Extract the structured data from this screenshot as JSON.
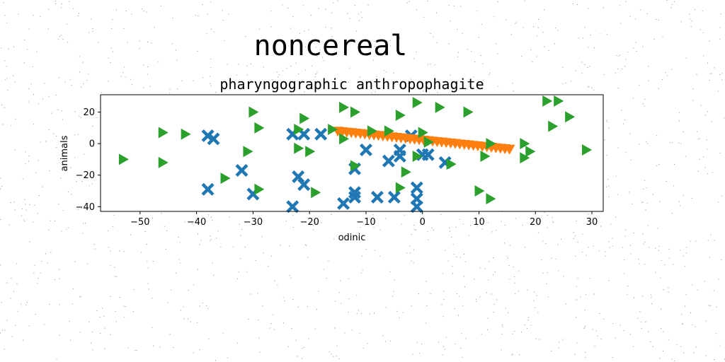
{
  "figure": {
    "suptitle": "noncereal"
  },
  "chart_data": {
    "type": "scatter",
    "title": "pharyngographic anthropophagite",
    "xlabel": "odinic",
    "ylabel": "animals",
    "xlim": [
      -57,
      32
    ],
    "ylim": [
      -43,
      31
    ],
    "xticks": [
      -50,
      -40,
      -30,
      -20,
      -10,
      0,
      10,
      20,
      30
    ],
    "yticks": [
      -40,
      -20,
      0,
      20
    ],
    "grid": false,
    "legend": "none",
    "series": [
      {
        "marker": "X",
        "color": "#1f77b4",
        "points": [
          [
            -38,
            5
          ],
          [
            -37,
            3
          ],
          [
            -38,
            -29
          ],
          [
            -32,
            -17
          ],
          [
            -30,
            -32
          ],
          [
            -23,
            6
          ],
          [
            -21,
            6
          ],
          [
            -22,
            -21
          ],
          [
            -21,
            -26
          ],
          [
            -18,
            6
          ],
          [
            -23,
            -40
          ],
          [
            -14,
            -38
          ],
          [
            -12,
            -34
          ],
          [
            -12,
            -31
          ],
          [
            -12,
            -16
          ],
          [
            -10,
            -4
          ],
          [
            -8,
            -34
          ],
          [
            -6,
            -11
          ],
          [
            -5,
            -34
          ],
          [
            -4,
            -4
          ],
          [
            -4,
            -8
          ],
          [
            -2,
            5
          ],
          [
            -1,
            -28
          ],
          [
            -1,
            -35
          ],
          [
            -1,
            -40
          ],
          [
            0,
            -7
          ],
          [
            1,
            -7
          ],
          [
            4,
            -12
          ]
        ]
      },
      {
        "marker": "v",
        "color": "#ff7f0e",
        "points": [
          [
            -15,
            8
          ],
          [
            -14.2,
            7.7
          ],
          [
            -13.4,
            7.4
          ],
          [
            -12.6,
            7.1
          ],
          [
            -11.8,
            6.8
          ],
          [
            -11,
            6.5
          ],
          [
            -10.2,
            6.2
          ],
          [
            -9.4,
            5.9
          ],
          [
            -8.6,
            5.6
          ],
          [
            -7.8,
            5.3
          ],
          [
            -7,
            5
          ],
          [
            -6.2,
            4.7
          ],
          [
            -5.4,
            4.4
          ],
          [
            -4.6,
            4.1
          ],
          [
            -3.8,
            3.8
          ],
          [
            -3,
            3.5
          ],
          [
            -2.2,
            3.2
          ],
          [
            -1.4,
            2.9
          ],
          [
            -0.6,
            2.6
          ],
          [
            0.2,
            2.3
          ],
          [
            1,
            2
          ],
          [
            1.8,
            1.7
          ],
          [
            2.6,
            1.4
          ],
          [
            3.4,
            1.1
          ],
          [
            4.2,
            0.8
          ],
          [
            5,
            0.5
          ],
          [
            5.8,
            0.2
          ],
          [
            6.6,
            -0.1
          ],
          [
            7.4,
            -0.4
          ],
          [
            8.2,
            -0.7
          ],
          [
            9,
            -1
          ],
          [
            9.8,
            -1.3
          ],
          [
            10.6,
            -1.6
          ],
          [
            11.4,
            -1.9
          ],
          [
            12.2,
            -2.2
          ],
          [
            13,
            -2.5
          ],
          [
            13.8,
            -2.8
          ],
          [
            14.6,
            -3.1
          ],
          [
            15.4,
            -3.4
          ]
        ]
      },
      {
        "marker": ">",
        "color": "#2ca02c",
        "points": [
          [
            -53,
            -10
          ],
          [
            -46,
            7
          ],
          [
            -46,
            -12
          ],
          [
            -42,
            6
          ],
          [
            -35,
            -22
          ],
          [
            -31,
            -5
          ],
          [
            -30,
            20
          ],
          [
            -29,
            10
          ],
          [
            -29,
            -29
          ],
          [
            -22,
            9
          ],
          [
            -22,
            -3
          ],
          [
            -21,
            16
          ],
          [
            -20,
            -5
          ],
          [
            -19,
            -31
          ],
          [
            -16,
            9
          ],
          [
            -14,
            23
          ],
          [
            -14,
            3
          ],
          [
            -12,
            20
          ],
          [
            -12,
            -14
          ],
          [
            -9,
            8
          ],
          [
            -6,
            8
          ],
          [
            -4,
            18
          ],
          [
            -3,
            -18
          ],
          [
            -4,
            -28
          ],
          [
            -1,
            -8
          ],
          [
            -1,
            26
          ],
          [
            0,
            7
          ],
          [
            1,
            1
          ],
          [
            3,
            23
          ],
          [
            5,
            -13
          ],
          [
            8,
            20
          ],
          [
            10,
            -30
          ],
          [
            11,
            -8
          ],
          [
            12,
            0
          ],
          [
            12,
            -35
          ],
          [
            18,
            0
          ],
          [
            18,
            -9
          ],
          [
            19,
            -5
          ],
          [
            22,
            27
          ],
          [
            23,
            11
          ],
          [
            24,
            27
          ],
          [
            26,
            17
          ],
          [
            29,
            -4
          ]
        ]
      }
    ]
  }
}
